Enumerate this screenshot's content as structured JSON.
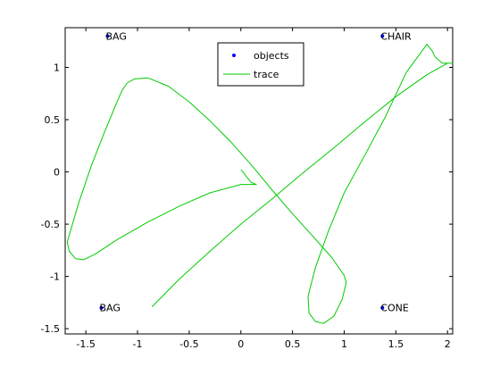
{
  "chart_data": {
    "type": "line",
    "title": "",
    "xlabel": "",
    "ylabel": "",
    "xlim": [
      -1.7,
      2.05
    ],
    "ylim": [
      -1.55,
      1.38
    ],
    "x_ticks": [
      -1.5,
      -1,
      -0.5,
      0,
      0.5,
      1,
      1.5,
      2
    ],
    "x_tick_labels": [
      "-1.5",
      "-1",
      "-0.5",
      "0",
      "0.5",
      "1",
      "1.5",
      "2"
    ],
    "y_ticks": [
      -1.5,
      -1,
      -0.5,
      0,
      0.5,
      1
    ],
    "y_tick_labels": [
      "-1.5",
      "-1",
      "-0.5",
      "0",
      "0.5",
      "1"
    ],
    "grid": false,
    "legend_position": "top-center",
    "legend": [
      "objects",
      "trace"
    ],
    "objects": [
      {
        "label": "BAG",
        "x": -1.29,
        "y": 1.3
      },
      {
        "label": "CHAIR",
        "x": 1.37,
        "y": 1.3
      },
      {
        "label": "BAG",
        "x": -1.35,
        "y": -1.3
      },
      {
        "label": "CONE",
        "x": 1.37,
        "y": -1.3
      }
    ],
    "series": [
      {
        "name": "trace",
        "color": "#00cc00",
        "x": [
          -0.86,
          -0.6,
          -0.3,
          0.0,
          0.3,
          0.6,
          0.9,
          1.2,
          1.5,
          1.8,
          2.0,
          2.05,
          1.95,
          1.88,
          1.85,
          1.8,
          1.6,
          1.4,
          1.2,
          1.0,
          0.85,
          0.72,
          0.65,
          0.66,
          0.72,
          0.8,
          0.9,
          0.98,
          1.02,
          1.0,
          0.88,
          0.7,
          0.5,
          0.3,
          0.1,
          -0.1,
          -0.3,
          -0.5,
          -0.7,
          -0.9,
          -1.03,
          -1.1,
          -1.15,
          -1.22,
          -1.32,
          -1.45,
          -1.57,
          -1.68,
          -1.66,
          -1.6,
          -1.52,
          -1.4,
          -1.2,
          -0.9,
          -0.6,
          -0.3,
          0.0,
          0.1,
          0.15,
          0.1,
          0.05,
          0.02,
          0.0
        ],
        "y": [
          -1.29,
          -1.03,
          -0.76,
          -0.5,
          -0.26,
          -0.01,
          0.23,
          0.48,
          0.72,
          0.93,
          1.04,
          1.04,
          1.04,
          1.1,
          1.16,
          1.22,
          0.95,
          0.53,
          0.16,
          -0.2,
          -0.56,
          -0.92,
          -1.19,
          -1.35,
          -1.43,
          -1.45,
          -1.38,
          -1.22,
          -1.06,
          -0.99,
          -0.82,
          -0.62,
          -0.4,
          -0.17,
          0.07,
          0.29,
          0.49,
          0.67,
          0.82,
          0.9,
          0.89,
          0.85,
          0.78,
          0.62,
          0.38,
          0.05,
          -0.3,
          -0.67,
          -0.76,
          -0.83,
          -0.84,
          -0.78,
          -0.65,
          -0.48,
          -0.33,
          -0.2,
          -0.12,
          -0.12,
          -0.12,
          -0.1,
          -0.04,
          0.0,
          0.02
        ]
      }
    ]
  }
}
